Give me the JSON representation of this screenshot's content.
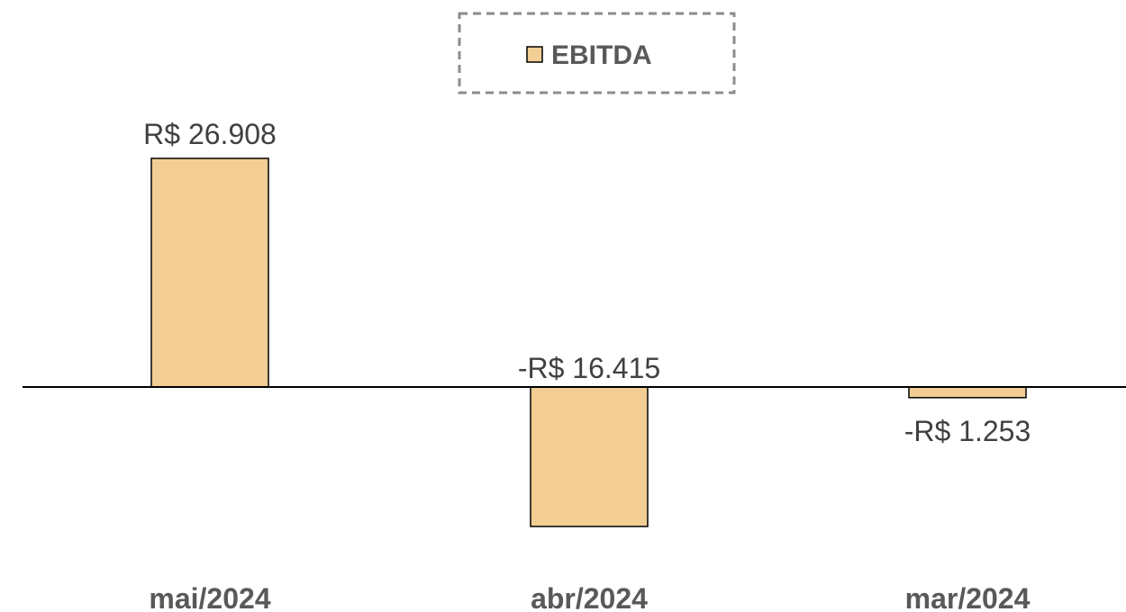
{
  "chart_data": {
    "type": "bar",
    "title": "",
    "xlabel": "",
    "ylabel": "",
    "categories": [
      "mai/2024",
      "abr/2024",
      "mar/2024"
    ],
    "series": [
      {
        "name": "EBITDA",
        "values": [
          26908,
          -16415,
          -1253
        ],
        "data_labels": [
          "R$ 26.908",
          "-R$ 16.415",
          "-R$ 1.253"
        ],
        "color": "#F2CE94"
      }
    ],
    "legend": {
      "position": "top-center",
      "border": "dashed"
    },
    "grid": false,
    "ylim": [
      -22000,
      36000
    ]
  },
  "colors": {
    "bar_fill": "#F2CE94",
    "bar_stroke": "#000000",
    "axis": "#000000",
    "legend_border": "#8C8C8C",
    "text": "#404040",
    "category_text": "#595959"
  }
}
